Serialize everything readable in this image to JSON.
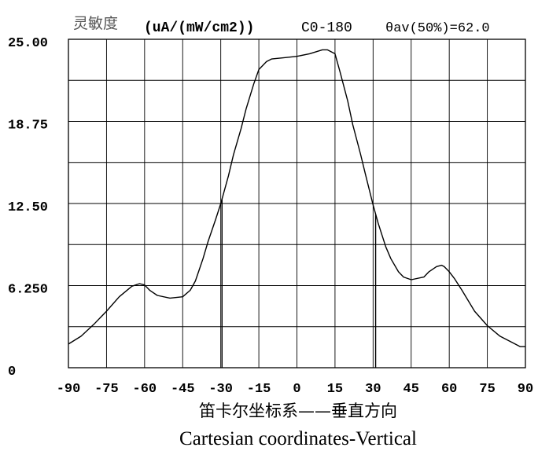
{
  "header": {
    "label_cn": "灵敏度",
    "unit": "(uA/(mW/cm2))",
    "plane": "C0-180",
    "half_angle": "θav(50%)=62.0"
  },
  "footer": {
    "title_cn": "笛卡尔坐标系——垂直方向",
    "title_en": "Cartesian coordinates-Vertical"
  },
  "colors": {
    "line": "#000000",
    "grid": "#000000",
    "text": "#000000",
    "header_cn": "#555555"
  },
  "chart_data": {
    "type": "line",
    "grid": true,
    "xlim": [
      -90,
      90
    ],
    "ylim": [
      0,
      25
    ],
    "x_ticks": [
      "-90",
      "-75",
      "-60",
      "-45",
      "-30",
      "-15",
      "0",
      "15",
      "30",
      "45",
      "60",
      "75",
      "90"
    ],
    "y_ticks": [
      "0",
      "6.250",
      "12.50",
      "18.75",
      "25.00"
    ],
    "y_tick_values": [
      0,
      6.25,
      12.5,
      18.75,
      25
    ],
    "half_intensity_lines_x": [
      -29.5,
      31
    ],
    "series": [
      {
        "x": [
          -90,
          -85,
          -80,
          -75,
          -70,
          -65,
          -62,
          -60,
          -58,
          -55,
          -50,
          -45,
          -42,
          -40,
          -37,
          -35,
          -32,
          -30,
          -27,
          -25,
          -22,
          -20,
          -17,
          -15,
          -12,
          -10,
          -5,
          0,
          5,
          10,
          12,
          15,
          17,
          20,
          22,
          25,
          27,
          30,
          32,
          35,
          37,
          40,
          42,
          45,
          50,
          52,
          55,
          57,
          58,
          60,
          62,
          65,
          70,
          75,
          80,
          85,
          88,
          90
        ],
        "y": [
          1.8,
          2.4,
          3.3,
          4.3,
          5.4,
          6.2,
          6.4,
          6.3,
          5.9,
          5.5,
          5.3,
          5.4,
          5.9,
          6.6,
          8.3,
          9.6,
          11.3,
          12.5,
          14.6,
          16.2,
          18.2,
          19.7,
          21.6,
          22.7,
          23.3,
          23.5,
          23.6,
          23.7,
          23.9,
          24.2,
          24.2,
          23.9,
          22.5,
          20.3,
          18.5,
          16.3,
          14.7,
          12.4,
          11.0,
          9.2,
          8.3,
          7.3,
          6.9,
          6.7,
          6.9,
          7.3,
          7.7,
          7.8,
          7.7,
          7.3,
          6.8,
          5.9,
          4.3,
          3.2,
          2.4,
          1.9,
          1.6,
          1.6
        ]
      }
    ]
  }
}
